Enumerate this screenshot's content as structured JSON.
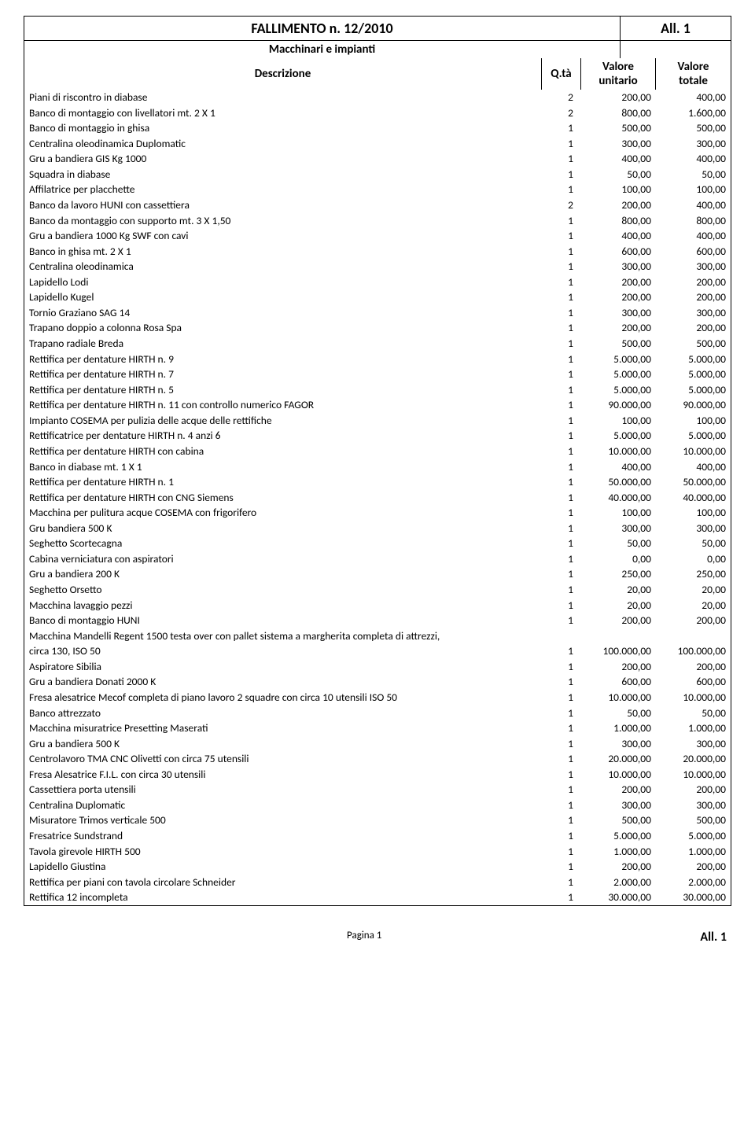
{
  "header": {
    "title": "FALLIMENTO n. 12/2010",
    "allegato": "All. 1",
    "subtitle": "Macchinari e impianti",
    "col_desc": "Descrizione",
    "col_qta": "Q.tà",
    "col_vu1": "Valore",
    "col_vu2": "unitario",
    "col_vt1": "Valore",
    "col_vt2": "totale"
  },
  "rows": [
    {
      "desc": "Piani di riscontro in diabase",
      "qta": "2",
      "vu": "200,00",
      "vt": "400,00"
    },
    {
      "desc": "Banco di montaggio con livellatori mt. 2 X 1",
      "qta": "2",
      "vu": "800,00",
      "vt": "1.600,00"
    },
    {
      "desc": "Banco di montaggio in ghisa",
      "qta": "1",
      "vu": "500,00",
      "vt": "500,00"
    },
    {
      "desc": "Centralina oleodinamica Duplomatic",
      "qta": "1",
      "vu": "300,00",
      "vt": "300,00"
    },
    {
      "desc": "Gru a bandiera GIS Kg 1000",
      "qta": "1",
      "vu": "400,00",
      "vt": "400,00"
    },
    {
      "desc": "Squadra in diabase",
      "qta": "1",
      "vu": "50,00",
      "vt": "50,00"
    },
    {
      "desc": "Affilatrice per placchette",
      "qta": "1",
      "vu": "100,00",
      "vt": "100,00"
    },
    {
      "desc": "Banco da lavoro HUNI con cassettiera",
      "qta": "2",
      "vu": "200,00",
      "vt": "400,00"
    },
    {
      "desc": "Banco da montaggio con supporto mt. 3 X 1,50",
      "qta": "1",
      "vu": "800,00",
      "vt": "800,00"
    },
    {
      "desc": "Gru a bandiera 1000 Kg SWF con cavi",
      "qta": "1",
      "vu": "400,00",
      "vt": "400,00"
    },
    {
      "desc": "Banco in ghisa mt. 2 X 1",
      "qta": "1",
      "vu": "600,00",
      "vt": "600,00"
    },
    {
      "desc": "Centralina oleodinamica",
      "qta": "1",
      "vu": "300,00",
      "vt": "300,00"
    },
    {
      "desc": "Lapidello Lodi",
      "qta": "1",
      "vu": "200,00",
      "vt": "200,00"
    },
    {
      "desc": "Lapidello Kugel",
      "qta": "1",
      "vu": "200,00",
      "vt": "200,00"
    },
    {
      "desc": "Tornio Graziano SAG 14",
      "qta": "1",
      "vu": "300,00",
      "vt": "300,00"
    },
    {
      "desc": "Trapano doppio a colonna Rosa Spa",
      "qta": "1",
      "vu": "200,00",
      "vt": "200,00"
    },
    {
      "desc": "Trapano radiale Breda",
      "qta": "1",
      "vu": "500,00",
      "vt": "500,00"
    },
    {
      "desc": "Rettifica per dentature HIRTH n. 9",
      "qta": "1",
      "vu": "5.000,00",
      "vt": "5.000,00"
    },
    {
      "desc": "Rettifica per dentature HIRTH n. 7",
      "qta": "1",
      "vu": "5.000,00",
      "vt": "5.000,00"
    },
    {
      "desc": "Rettifica per dentature HIRTH n. 5",
      "qta": "1",
      "vu": "5.000,00",
      "vt": "5.000,00"
    },
    {
      "desc": "Rettifica per dentature HIRTH n. 11 con controllo numerico FAGOR",
      "qta": "1",
      "vu": "90.000,00",
      "vt": "90.000,00"
    },
    {
      "desc": "Impianto COSEMA per pulizia delle acque delle rettifiche",
      "qta": "1",
      "vu": "100,00",
      "vt": "100,00"
    },
    {
      "desc": "Rettificatrice per dentature HIRTH n. 4 anzi 6",
      "qta": "1",
      "vu": "5.000,00",
      "vt": "5.000,00"
    },
    {
      "desc": "Rettifica per dentature HIRTH con cabina",
      "qta": "1",
      "vu": "10.000,00",
      "vt": "10.000,00"
    },
    {
      "desc": "Banco in diabase mt. 1 X 1",
      "qta": "1",
      "vu": "400,00",
      "vt": "400,00"
    },
    {
      "desc": "Rettifica per dentature HIRTH n. 1",
      "qta": "1",
      "vu": "50.000,00",
      "vt": "50.000,00"
    },
    {
      "desc": "Rettifica per dentature HIRTH con CNG Siemens",
      "qta": "1",
      "vu": "40.000,00",
      "vt": "40.000,00"
    },
    {
      "desc": "Macchina per pulitura acque COSEMA con frigorifero",
      "qta": "1",
      "vu": "100,00",
      "vt": "100,00"
    },
    {
      "desc": "Gru bandiera 500 K",
      "qta": "1",
      "vu": "300,00",
      "vt": "300,00"
    },
    {
      "desc": "Seghetto Scortecagna",
      "qta": "1",
      "vu": "50,00",
      "vt": "50,00"
    },
    {
      "desc": "Cabina verniciatura con aspiratori",
      "qta": "1",
      "vu": "0,00",
      "vt": "0,00"
    },
    {
      "desc": "Gru a bandiera 200 K",
      "qta": "1",
      "vu": "250,00",
      "vt": "250,00"
    },
    {
      "desc": "Seghetto Orsetto",
      "qta": "1",
      "vu": "20,00",
      "vt": "20,00"
    },
    {
      "desc": "Macchina lavaggio pezzi",
      "qta": "1",
      "vu": "20,00",
      "vt": "20,00"
    },
    {
      "desc": "Banco di montaggio HUNI",
      "qta": "1",
      "vu": "200,00",
      "vt": "200,00"
    },
    {
      "desc": "Macchina Mandelli Regent 1500 testa over con pallet sistema a margherita completa di attrezzi,",
      "qta": "",
      "vu": "",
      "vt": ""
    },
    {
      "desc": "circa 130, ISO 50",
      "qta": "1",
      "vu": "100.000,00",
      "vt": "100.000,00"
    },
    {
      "desc": "Aspiratore Sibilia",
      "qta": "1",
      "vu": "200,00",
      "vt": "200,00"
    },
    {
      "desc": "Gru a bandiera Donati 2000 K",
      "qta": "1",
      "vu": "600,00",
      "vt": "600,00"
    },
    {
      "desc": "Fresa alesatrice Mecof completa di piano lavoro 2 squadre con circa 10 utensili ISO 50",
      "qta": "1",
      "vu": "10.000,00",
      "vt": "10.000,00"
    },
    {
      "desc": "Banco attrezzato",
      "qta": "1",
      "vu": "50,00",
      "vt": "50,00"
    },
    {
      "desc": "Macchina misuratrice Presetting Maserati",
      "qta": "1",
      "vu": "1.000,00",
      "vt": "1.000,00"
    },
    {
      "desc": "Gru a bandiera 500 K",
      "qta": "1",
      "vu": "300,00",
      "vt": "300,00"
    },
    {
      "desc": "Centrolavoro TMA CNC Olivetti con circa 75 utensili",
      "qta": "1",
      "vu": "20.000,00",
      "vt": "20.000,00"
    },
    {
      "desc": "Fresa Alesatrice F.I.L. con circa 30 utensili",
      "qta": "1",
      "vu": "10.000,00",
      "vt": "10.000,00"
    },
    {
      "desc": "Cassettiera porta utensili",
      "qta": "1",
      "vu": "200,00",
      "vt": "200,00"
    },
    {
      "desc": "Centralina Duplomatic",
      "qta": "1",
      "vu": "300,00",
      "vt": "300,00"
    },
    {
      "desc": "Misuratore Trimos verticale 500",
      "qta": "1",
      "vu": "500,00",
      "vt": "500,00"
    },
    {
      "desc": "Fresatrice Sundstrand",
      "qta": "1",
      "vu": "5.000,00",
      "vt": "5.000,00"
    },
    {
      "desc": "Tavola girevole HIRTH 500",
      "qta": "1",
      "vu": "1.000,00",
      "vt": "1.000,00"
    },
    {
      "desc": "Lapidello Giustina",
      "qta": "1",
      "vu": "200,00",
      "vt": "200,00"
    },
    {
      "desc": "Rettifica per piani con tavola circolare Schneider",
      "qta": "1",
      "vu": "2.000,00",
      "vt": "2.000,00"
    },
    {
      "desc": "Rettifica 12 incompleta",
      "qta": "1",
      "vu": "30.000,00",
      "vt": "30.000,00"
    }
  ],
  "footer": {
    "page": "Pagina 1",
    "allegato": "All. 1"
  }
}
